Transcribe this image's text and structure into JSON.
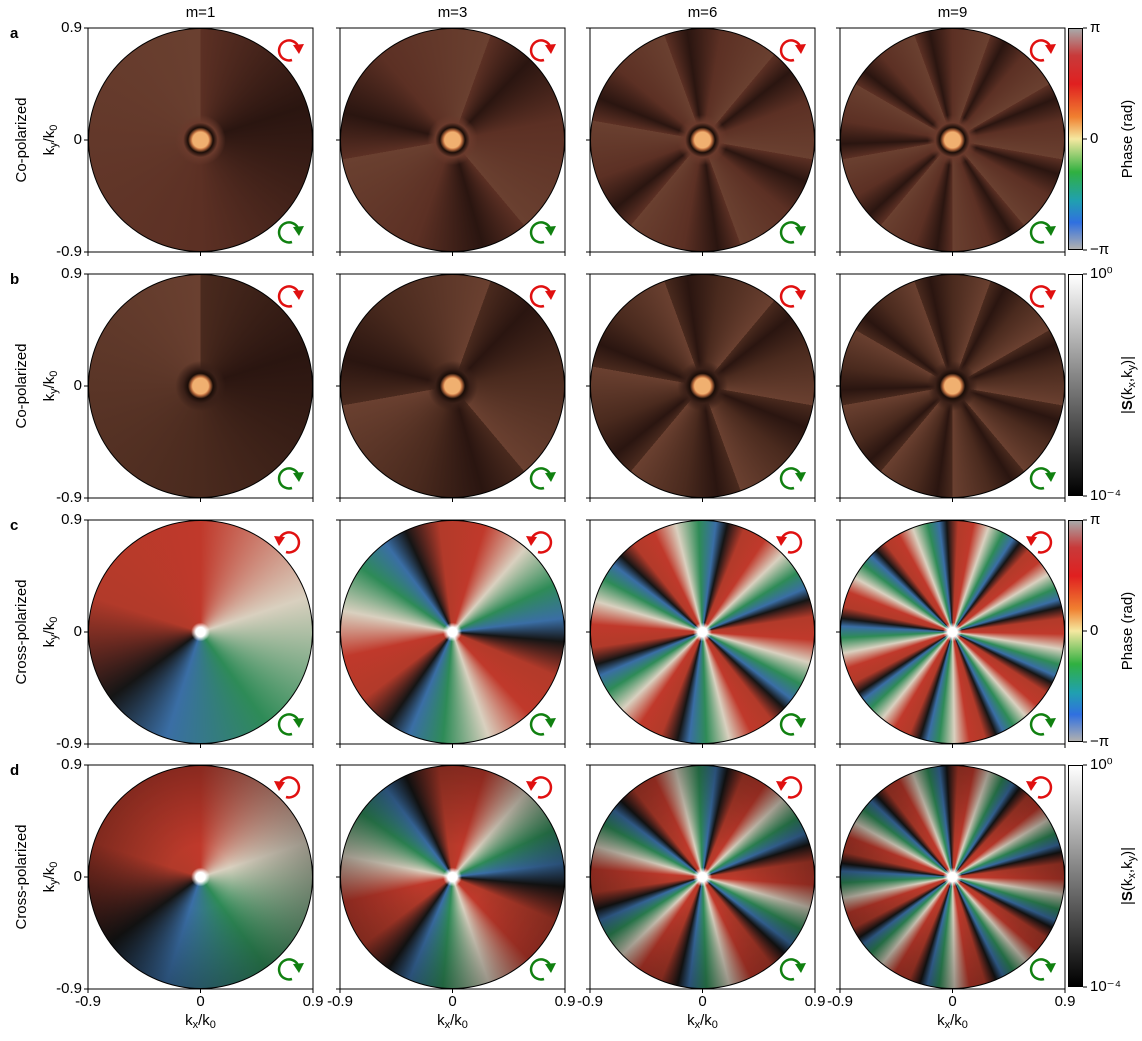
{
  "figure": {
    "columns": [
      "m=1",
      "m=3",
      "m=6",
      "m=9"
    ],
    "rows": [
      {
        "letter": "a",
        "label": "Co-polarized",
        "colorbar": {
          "label": "Phase (rad)",
          "colormap": "phase",
          "lim": [
            -3.14159,
            3.14159
          ],
          "ticks": [
            {
              "value": 3.14159,
              "label": "π"
            },
            0,
            {
              "value": -3.14159,
              "label": "−π"
            }
          ]
        }
      },
      {
        "letter": "b",
        "label": "Co-polarized",
        "colorbar": {
          "label": "|S(kx,ky)|",
          "colormap": "gray",
          "lim": [
            -4,
            0
          ],
          "ticks": [
            {
              "value": 0,
              "label": "10⁰"
            },
            {
              "value": -4,
              "label": "10⁻⁴"
            }
          ]
        }
      },
      {
        "letter": "c",
        "label": "Cross-polarized",
        "colorbar": {
          "label": "Phase (rad)",
          "colormap": "phase",
          "lim": [
            -3.14159,
            3.14159
          ],
          "ticks": [
            {
              "value": 3.14159,
              "label": "π"
            },
            0,
            {
              "value": -3.14159,
              "label": "−π"
            }
          ]
        }
      },
      {
        "letter": "d",
        "label": "Cross-polarized",
        "colorbar": {
          "label": "|S(kx,ky)|",
          "colormap": "gray",
          "lim": [
            -4,
            0
          ],
          "ticks": [
            {
              "value": 0,
              "label": "10⁰"
            },
            {
              "value": -4,
              "label": "10⁻⁴"
            }
          ]
        }
      }
    ],
    "axes": {
      "x_label": "kx/k0",
      "y_label": "ky/k0",
      "xlim": [
        -0.9,
        0.9
      ],
      "ylim": [
        -0.9,
        0.9
      ],
      "xticks": [
        -0.9,
        0,
        0.9
      ],
      "yticks": [
        -0.9,
        0,
        0.9
      ]
    }
  }
}
